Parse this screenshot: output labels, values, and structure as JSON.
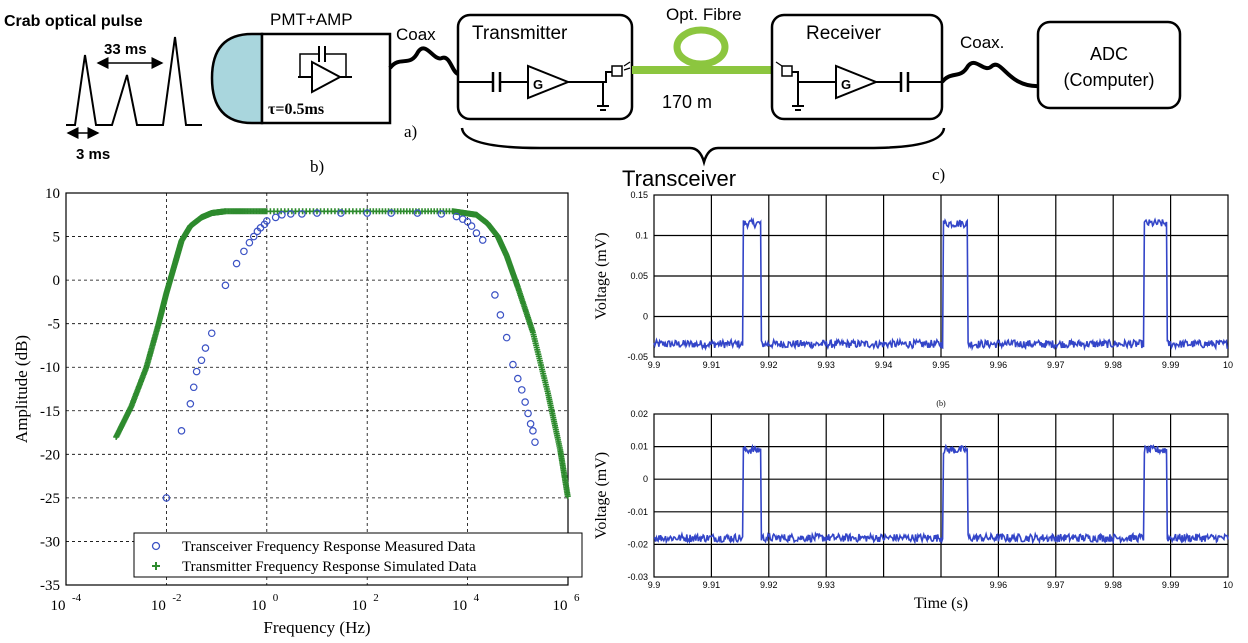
{
  "diagram": {
    "pulse": {
      "title": "Crab optical pulse",
      "period": "33 ms",
      "width": "3 ms"
    },
    "pmt": {
      "title": "PMT+AMP",
      "tau": "τ=0.5ms"
    },
    "link_coax": "Coax",
    "transmitter": {
      "title": "Transmitter",
      "gain_symbol": "G"
    },
    "fibre": {
      "title": "Opt. Fibre",
      "length": "170 m"
    },
    "receiver": {
      "title": "Receiver",
      "gain_symbol": "G"
    },
    "link_coax2": "Coax.",
    "adc": {
      "line1": "ADC",
      "line2": "(Computer)"
    },
    "brace_label": "Transceiver",
    "panel_labels": {
      "a": "a)",
      "b": "b)",
      "c": "c)"
    }
  },
  "chart_data": [
    {
      "type": "scatter",
      "xlabel": "Frequency (Hz)",
      "ylabel": "Amplitude (dB)",
      "x_scale": "log",
      "xlim": [
        0.0001,
        1000000
      ],
      "ylim": [
        -35,
        10
      ],
      "x_ticks": [
        {
          "b": "10",
          "e": "-4"
        },
        {
          "b": "10",
          "e": "-2"
        },
        {
          "b": "10",
          "e": "0"
        },
        {
          "b": "10",
          "e": "2"
        },
        {
          "b": "10",
          "e": "4"
        },
        {
          "b": "10",
          "e": "6"
        }
      ],
      "y_ticks": [
        "10",
        "5",
        "0",
        "-5",
        "-10",
        "-15",
        "-20",
        "-25",
        "-30",
        "-35"
      ],
      "grid": true,
      "legend_position": "bottom-right",
      "series": [
        {
          "name": "Transceiver Frequency Response  Measured Data",
          "marker": "circle",
          "color": "#3b52c4",
          "points": [
            [
              0.01,
              -25
            ],
            [
              0.02,
              -17.3
            ],
            [
              0.03,
              -14.2
            ],
            [
              0.035,
              -12.3
            ],
            [
              0.04,
              -10.5
            ],
            [
              0.05,
              -9.2
            ],
            [
              0.06,
              -7.8
            ],
            [
              0.08,
              -6.1
            ],
            [
              0.15,
              -0.6
            ],
            [
              0.25,
              1.9
            ],
            [
              0.35,
              3.3
            ],
            [
              0.45,
              4.3
            ],
            [
              0.55,
              5.0
            ],
            [
              0.65,
              5.6
            ],
            [
              0.75,
              6.0
            ],
            [
              0.9,
              6.4
            ],
            [
              1.0,
              6.8
            ],
            [
              1.5,
              7.2
            ],
            [
              2,
              7.5
            ],
            [
              3,
              7.6
            ],
            [
              5,
              7.6
            ],
            [
              10,
              7.7
            ],
            [
              30,
              7.7
            ],
            [
              100,
              7.7
            ],
            [
              300,
              7.7
            ],
            [
              1000,
              7.7
            ],
            [
              3000,
              7.6
            ],
            [
              6000,
              7.3
            ],
            [
              8000,
              7.0
            ],
            [
              10000,
              6.7
            ],
            [
              12000,
              6.2
            ],
            [
              15000,
              5.4
            ],
            [
              20000,
              4.6
            ],
            [
              35000,
              -1.7
            ],
            [
              45000,
              -4.0
            ],
            [
              60000,
              -6.6
            ],
            [
              80000,
              -9.7
            ],
            [
              100000,
              -11.3
            ],
            [
              120000,
              -12.6
            ],
            [
              140000,
              -14.0
            ],
            [
              160000,
              -15.3
            ],
            [
              180000,
              -16.5
            ],
            [
              200000,
              -17.3
            ],
            [
              220000,
              -18.6
            ]
          ]
        },
        {
          "name": "Transmitter Frequency Response  Simulated Data",
          "marker": "plus",
          "color": "#2e8b2e",
          "curve": [
            [
              0.001,
              -18
            ],
            [
              0.002,
              -14.5
            ],
            [
              0.004,
              -10
            ],
            [
              0.007,
              -5
            ],
            [
              0.01,
              -1.5
            ],
            [
              0.015,
              2
            ],
            [
              0.02,
              4.5
            ],
            [
              0.03,
              6.2
            ],
            [
              0.05,
              7.2
            ],
            [
              0.08,
              7.7
            ],
            [
              0.15,
              7.9
            ],
            [
              1,
              7.9
            ],
            [
              100,
              7.9
            ],
            [
              5000,
              7.9
            ],
            [
              15000,
              7.5
            ],
            [
              25000,
              6.5
            ],
            [
              40000,
              5
            ],
            [
              60000,
              2.8
            ],
            [
              100000,
              -0.8
            ],
            [
              200000,
              -6
            ],
            [
              400000,
              -13
            ],
            [
              700000,
              -19.5
            ],
            [
              1000000,
              -25
            ]
          ]
        }
      ]
    },
    {
      "type": "line",
      "ylabel": "Voltage (mV)",
      "xlim": [
        9.9,
        10.0
      ],
      "ylim": [
        -0.05,
        0.15
      ],
      "x_ticks": [
        "9.9",
        "9.91",
        "9.92",
        "9.93",
        "9.94",
        "9.95",
        "9.96",
        "9.97",
        "9.98",
        "9.99",
        "10"
      ],
      "y_ticks": [
        "0.15",
        "0.1",
        "0.05",
        "0",
        "-0.05"
      ],
      "grid": true,
      "color": "#3345c8",
      "baseline": -0.034,
      "high": 0.115,
      "pulses": [
        [
          9.9155,
          9.9187
        ],
        [
          9.9504,
          9.9546
        ],
        [
          9.9854,
          9.9894
        ]
      ]
    },
    {
      "type": "line",
      "title": "(b)",
      "xlabel": "Time (s)",
      "ylabel": "Voltage (mV)",
      "xlim": [
        9.9,
        10.0
      ],
      "ylim": [
        -0.03,
        0.02
      ],
      "x_ticks": [
        "9.9",
        "9.91",
        "9.92",
        "9.93",
        "",
        "",
        "9.96",
        "9.97",
        "9.98",
        "9.99",
        "10"
      ],
      "y_ticks": [
        "0.02",
        "0.01",
        "0",
        "-0.01",
        "-0.02",
        "-0.03"
      ],
      "grid": true,
      "color": "#3345c8",
      "baseline": -0.018,
      "high": 0.009,
      "pulses": [
        [
          9.9155,
          9.9187
        ],
        [
          9.9504,
          9.9546
        ],
        [
          9.9854,
          9.9894
        ]
      ]
    }
  ]
}
